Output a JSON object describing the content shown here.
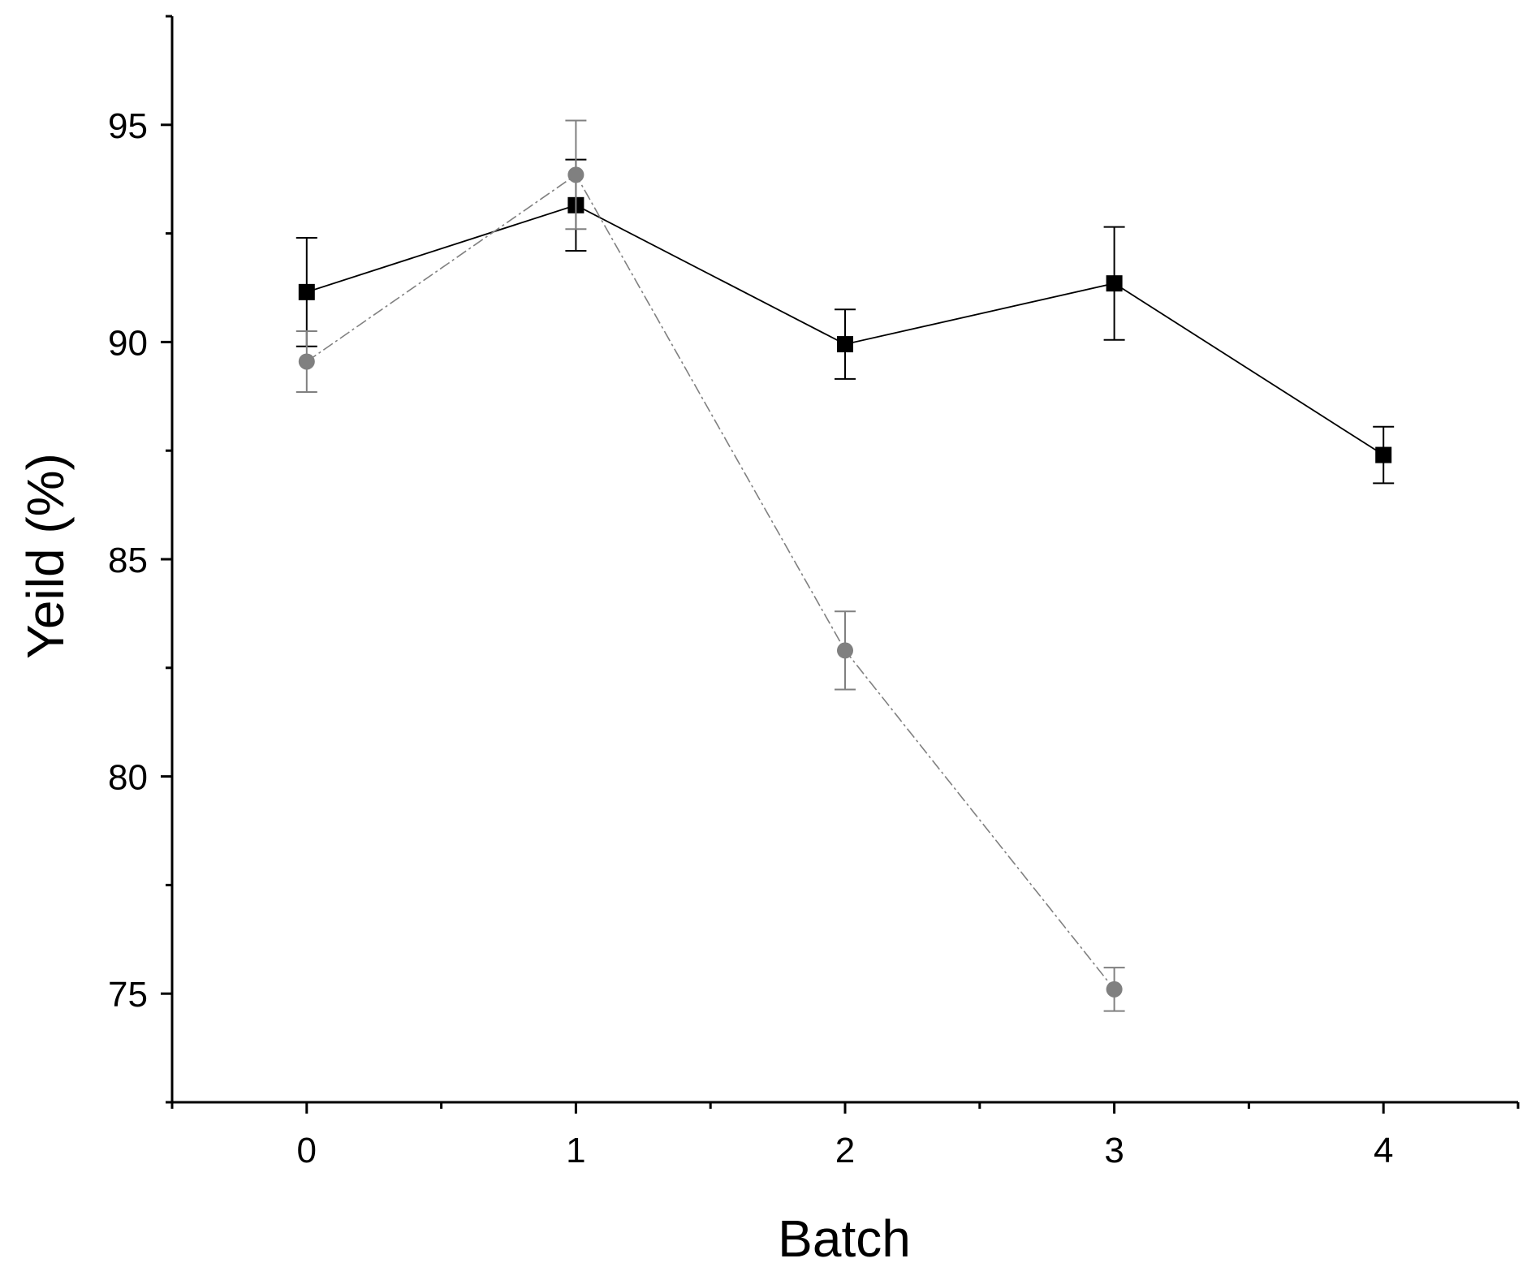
{
  "chart_data": {
    "type": "line",
    "title": "",
    "xlabel": "Batch",
    "ylabel": "Yeild (%)",
    "xlim": [
      -0.5,
      4.5
    ],
    "ylim": [
      72.5,
      97.5
    ],
    "xticks": [
      0,
      1,
      2,
      3,
      4
    ],
    "xtick_labels": [
      "0",
      "1",
      "2",
      "3",
      "4"
    ],
    "yticks": [
      75,
      80,
      85,
      90,
      95
    ],
    "ytick_labels": [
      "75",
      "80",
      "85",
      "90",
      "95"
    ],
    "x_minor_ticks": [
      -0.5,
      0.5,
      1.5,
      2.5,
      3.5,
      4.5
    ],
    "y_minor_ticks": [
      72.5,
      77.5,
      82.5,
      87.5,
      92.5,
      97.5
    ],
    "grid": false,
    "legend": "none",
    "series": [
      {
        "marker": "square",
        "color": "#000000",
        "line_style": "solid",
        "x": [
          0,
          1,
          2,
          3,
          4
        ],
        "y": [
          91.15,
          93.15,
          89.95,
          91.35,
          87.4
        ],
        "err": [
          1.25,
          1.05,
          0.8,
          1.3,
          0.65
        ]
      },
      {
        "marker": "circle",
        "color": "#808080",
        "line_style": "dashed",
        "x": [
          0,
          1,
          2,
          3
        ],
        "y": [
          89.55,
          93.85,
          82.9,
          75.1
        ],
        "err": [
          0.7,
          1.25,
          0.9,
          0.5
        ]
      }
    ]
  }
}
